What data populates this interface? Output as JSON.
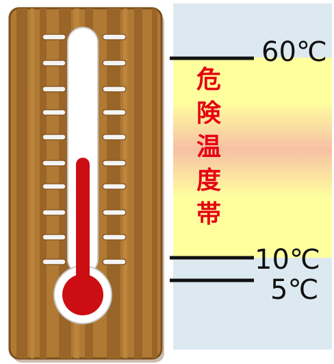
{
  "danger_zone": {
    "chars": [
      "危",
      "険",
      "温",
      "度",
      "帯"
    ]
  },
  "temperatures": {
    "upper": "60℃",
    "lower": "10℃",
    "cold": "5℃"
  },
  "colors": {
    "panel_bg": "#dde9f0",
    "zone_yellow": "#ffff9e",
    "zone_orange": "#f7c8a6",
    "label_red": "#e60012",
    "mercury_red": "#cc0e14",
    "wood": "#b17a34",
    "wood_dark": "#8a5a24"
  },
  "icons": {
    "thermometer": "thermometer-icon"
  }
}
